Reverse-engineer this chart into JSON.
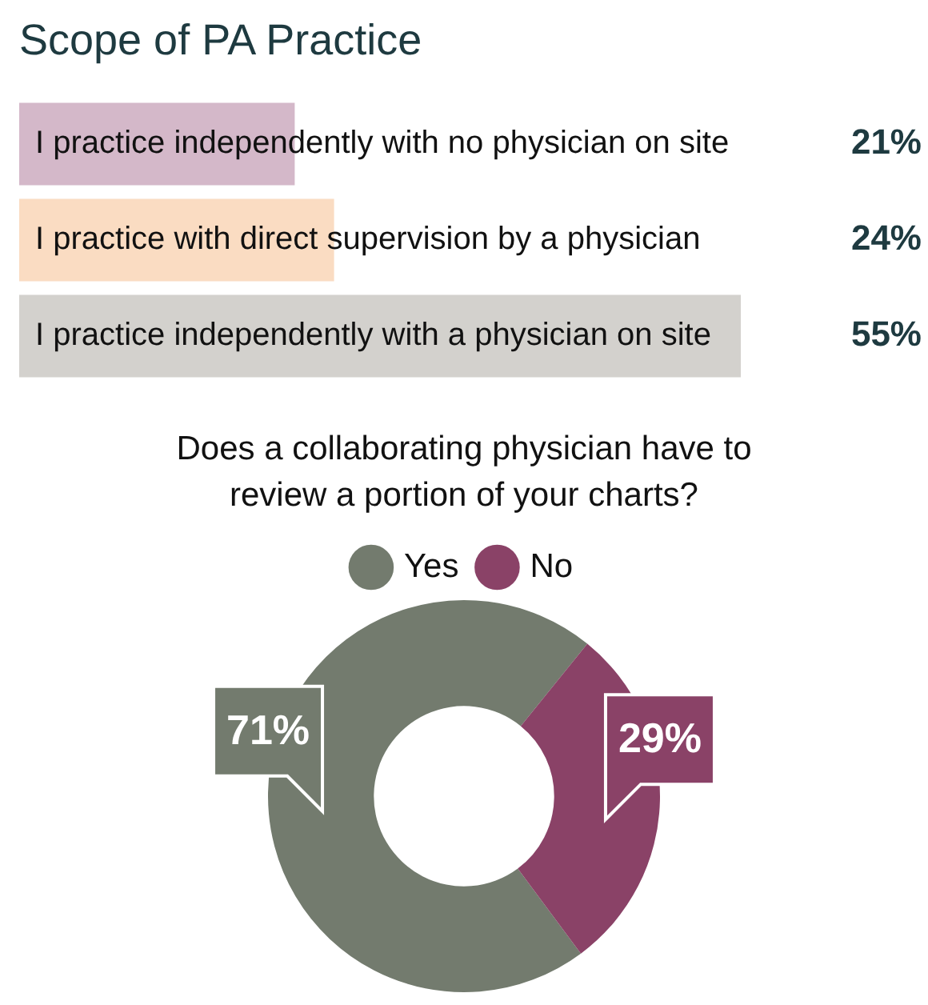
{
  "chart_data": [
    {
      "type": "bar",
      "orientation": "horizontal",
      "title": "Scope of PA Practice",
      "categories": [
        "I practice independently with no physician on site",
        "I practice with direct supervision by a physician",
        "I practice independently with a physician on site"
      ],
      "values": [
        21,
        24,
        55
      ],
      "colors": [
        "#d4b8c9",
        "#fadcc2",
        "#d3d1cd"
      ],
      "value_labels": [
        "21%",
        "24%",
        "55%"
      ],
      "tick_labels": false
    },
    {
      "type": "donut",
      "title": "Does a collaborating physician have to review a portion of your charts?",
      "categories": [
        "Yes",
        "No"
      ],
      "values": [
        71,
        29
      ],
      "colors": [
        "#737b6e",
        "#8a4267"
      ],
      "value_labels": [
        "71%",
        "29%"
      ],
      "legend": "top"
    }
  ]
}
